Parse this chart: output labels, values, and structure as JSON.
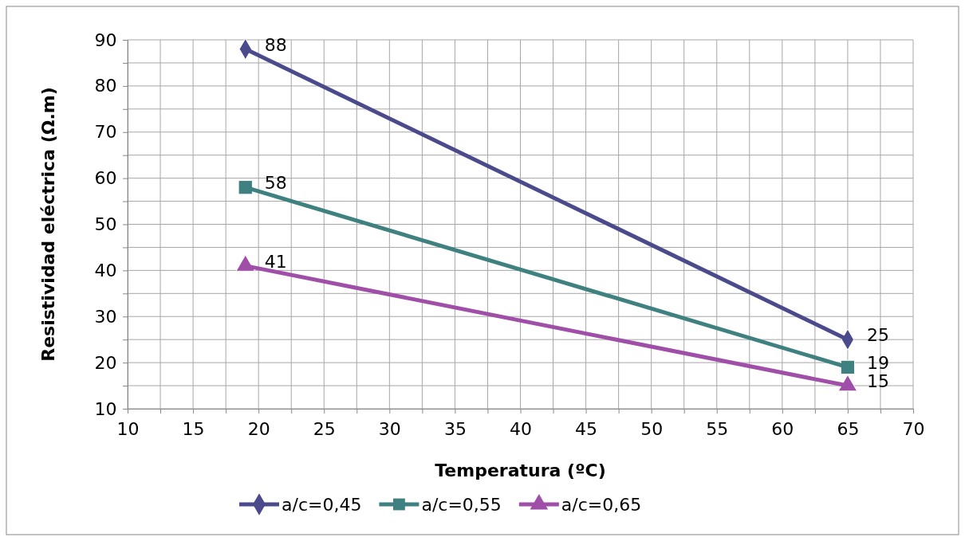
{
  "chart_data": {
    "type": "line",
    "xlabel": "Temperatura (ºC)",
    "ylabel": "Resistividad eléctrica (Ω.m)",
    "xlim": [
      10,
      70
    ],
    "ylim": [
      10,
      90
    ],
    "xticks": [
      10,
      {
        "value": 12.5,
        "label": null
      },
      15,
      {
        "value": 17.5,
        "label": null
      },
      20,
      {
        "value": 22.5,
        "label": null
      },
      25,
      {
        "value": 27.5,
        "label": null
      },
      30,
      {
        "value": 32.5,
        "label": null
      },
      35,
      {
        "value": 37.5,
        "label": null
      },
      40,
      {
        "value": 42.5,
        "label": null
      },
      45,
      {
        "value": 47.5,
        "label": null
      },
      50,
      {
        "value": 52.5,
        "label": null
      },
      55,
      {
        "value": 57.5,
        "label": null
      },
      60,
      {
        "value": 62.5,
        "label": null
      },
      65,
      {
        "value": 67.5,
        "label": null
      },
      70
    ],
    "yticks": [
      10,
      {
        "value": 15,
        "label": null
      },
      20,
      {
        "value": 25,
        "label": null
      },
      30,
      {
        "value": 35,
        "label": null
      },
      40,
      {
        "value": 45,
        "label": null
      },
      50,
      {
        "value": 55,
        "label": null
      },
      60,
      {
        "value": 65,
        "label": null
      },
      70,
      {
        "value": 75,
        "label": null
      },
      80,
      {
        "value": 85,
        "label": null
      },
      90
    ],
    "x": [
      19,
      65
    ],
    "grid": true,
    "legend": "bottom",
    "data_labels": true,
    "series": [
      {
        "name": "a/c=0,45",
        "color": "#4a4a8c",
        "marker": "diamond",
        "values": [
          88,
          25
        ]
      },
      {
        "name": "a/c=0,55",
        "color": "#3f8080",
        "marker": "square",
        "values": [
          58,
          19
        ]
      },
      {
        "name": "a/c=0,65",
        "color": "#a04fa8",
        "marker": "triangle",
        "values": [
          41,
          15
        ]
      }
    ]
  }
}
